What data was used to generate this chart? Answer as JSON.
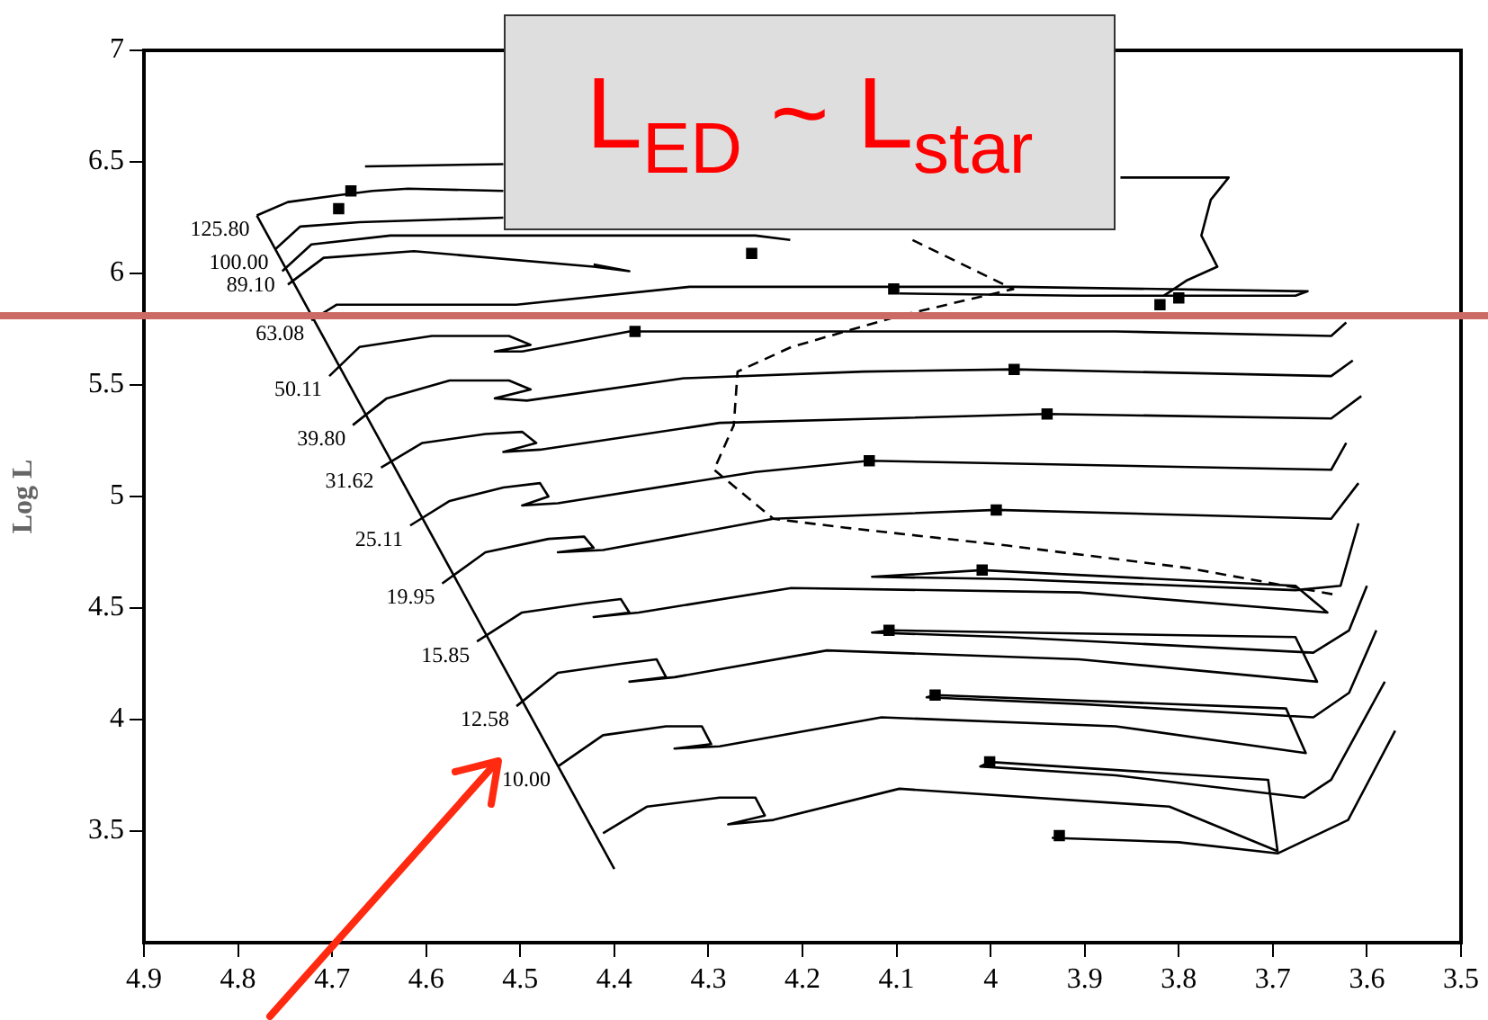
{
  "chart_data": {
    "type": "line",
    "ylabel": "Log L",
    "annotations": [
      "L$_{ED}$ ~ L$_{star}$"
    ],
    "xlim": [
      4.9,
      3.5
    ],
    "xticks": [
      4.9,
      4.8,
      4.7,
      4.6,
      4.5,
      4.4,
      4.3,
      4.2,
      4.1,
      4,
      3.9,
      3.8,
      3.7,
      3.6,
      3.5
    ],
    "ylim": [
      3,
      7
    ],
    "yticks": [
      3.5,
      4,
      4.5,
      5,
      5.5,
      6,
      6.5,
      7
    ],
    "grid": false,
    "legend": false,
    "ref_lines": [
      {
        "axis": "y",
        "value": 5.81,
        "color": "#cc6b66"
      }
    ],
    "series": [
      {
        "color": "#000000",
        "x": [
          4.78,
          4.4
        ],
        "values": [
          6.26,
          3.33
        ]
      },
      {
        "name": "125.80",
        "color": "#000000",
        "x": [
          4.78,
          4.747,
          4.695,
          4.657,
          4.619,
          4.518
        ],
        "values": [
          6.26,
          6.32,
          6.35,
          6.37,
          6.38,
          6.37
        ]
      },
      {
        "color": "#000000",
        "x": [
          4.665,
          4.518
        ],
        "values": [
          6.48,
          6.49
        ]
      },
      {
        "color": "#000000",
        "x": [
          3.862,
          3.747,
          3.766,
          3.776,
          3.759,
          3.791,
          3.816
        ],
        "values": [
          6.43,
          6.43,
          6.33,
          6.17,
          6.03,
          5.97,
          5.9
        ]
      },
      {
        "name": "100.00",
        "color": "#000000",
        "x": [
          4.76,
          4.734,
          4.671,
          4.518
        ],
        "values": [
          6.11,
          6.21,
          6.23,
          6.25
        ]
      },
      {
        "name": "89.10",
        "color": "#000000",
        "x": [
          4.753,
          4.722,
          4.638,
          4.518,
          4.25,
          4.213
        ],
        "values": [
          6.01,
          6.13,
          6.17,
          6.17,
          6.17,
          6.15
        ]
      },
      {
        "color": "#000000",
        "x": [
          4.747,
          4.709,
          4.613,
          4.422,
          4.384,
          4.422
        ],
        "values": [
          5.95,
          6.07,
          6.1,
          6.03,
          6.01,
          6.04
        ]
      },
      {
        "name": "63.08",
        "color": "#000000",
        "x": [
          4.722,
          4.695,
          4.504,
          4.32,
          4.288,
          3.976,
          3.663,
          3.676,
          3.906,
          4.097
        ],
        "values": [
          5.79,
          5.86,
          5.86,
          5.94,
          5.94,
          5.94,
          5.92,
          5.9,
          5.9,
          5.91
        ]
      },
      {
        "name": "50.11",
        "color": "#000000",
        "x": [
          4.703,
          4.671,
          4.594,
          4.512,
          4.489,
          4.527,
          4.498,
          4.384,
          4.097,
          3.867,
          3.638,
          3.622
        ],
        "values": [
          5.54,
          5.67,
          5.72,
          5.72,
          5.68,
          5.65,
          5.65,
          5.74,
          5.74,
          5.74,
          5.72,
          5.78
        ]
      },
      {
        "name": "39.80",
        "color": "#000000",
        "x": [
          4.678,
          4.642,
          4.575,
          4.512,
          4.489,
          4.527,
          4.493,
          4.326,
          4.135,
          3.975,
          3.638,
          3.615
        ],
        "values": [
          5.32,
          5.44,
          5.52,
          5.52,
          5.48,
          5.44,
          5.43,
          5.53,
          5.56,
          5.57,
          5.54,
          5.61
        ]
      },
      {
        "name": "31.62",
        "color": "#000000",
        "x": [
          4.648,
          4.604,
          4.537,
          4.498,
          4.483,
          4.518,
          4.479,
          4.288,
          3.94,
          3.638,
          3.606
        ],
        "values": [
          5.13,
          5.24,
          5.28,
          5.29,
          5.24,
          5.2,
          5.21,
          5.33,
          5.37,
          5.35,
          5.45
        ]
      },
      {
        "name": "25.11",
        "color": "#000000",
        "x": [
          4.617,
          4.575,
          4.518,
          4.479,
          4.47,
          4.498,
          4.46,
          4.25,
          4.129,
          3.638,
          3.622
        ],
        "values": [
          4.87,
          4.98,
          5.04,
          5.06,
          5.0,
          4.96,
          4.97,
          5.11,
          5.16,
          5.12,
          5.24
        ]
      },
      {
        "name": "19.95",
        "color": "#000000",
        "x": [
          4.583,
          4.537,
          4.47,
          4.432,
          4.422,
          4.46,
          4.412,
          4.231,
          3.994,
          3.638,
          3.609
        ],
        "values": [
          4.61,
          4.75,
          4.81,
          4.82,
          4.77,
          4.75,
          4.76,
          4.9,
          4.94,
          4.9,
          5.06
        ]
      },
      {
        "name": "15.85",
        "color": "#000000",
        "x": [
          4.546,
          4.498,
          4.432,
          4.393,
          4.384,
          4.422,
          4.374,
          4.212,
          3.906,
          3.642,
          3.676,
          4.009,
          4.126,
          3.982,
          3.676,
          3.628,
          3.609
        ],
        "values": [
          4.35,
          4.48,
          4.52,
          4.54,
          4.48,
          4.46,
          4.48,
          4.59,
          4.57,
          4.48,
          4.6,
          4.67,
          4.64,
          4.63,
          4.58,
          4.6,
          4.88
        ]
      },
      {
        "name": "12.58",
        "color": "#000000",
        "x": [
          4.504,
          4.46,
          4.393,
          4.355,
          4.345,
          4.384,
          4.336,
          4.174,
          3.906,
          3.653,
          3.676,
          4.108,
          4.126,
          3.982,
          3.657,
          3.619,
          3.6
        ],
        "values": [
          4.06,
          4.21,
          4.25,
          4.27,
          4.19,
          4.17,
          4.19,
          4.31,
          4.27,
          4.17,
          4.37,
          4.4,
          4.39,
          4.37,
          4.3,
          4.4,
          4.6
        ]
      },
      {
        "name": "10.00",
        "color": "#000000",
        "x": [
          4.46,
          4.412,
          4.345,
          4.307,
          4.297,
          4.336,
          4.288,
          4.116,
          3.867,
          3.665,
          3.686,
          4.059,
          4.068,
          3.906,
          3.657,
          3.619,
          3.59
        ],
        "values": [
          3.79,
          3.93,
          3.97,
          3.97,
          3.89,
          3.87,
          3.88,
          4.01,
          3.97,
          3.85,
          4.05,
          4.11,
          4.1,
          4.07,
          4.01,
          4.12,
          4.4
        ]
      },
      {
        "color": "#000000",
        "x": [
          4.412,
          4.365,
          4.288,
          4.25,
          4.24,
          4.279,
          4.231,
          4.097,
          3.81,
          3.695,
          3.705,
          4.001,
          4.011,
          3.867,
          3.667,
          3.638,
          3.581
        ],
        "values": [
          3.49,
          3.61,
          3.65,
          3.65,
          3.57,
          3.53,
          3.55,
          3.69,
          3.61,
          3.41,
          3.73,
          3.81,
          3.79,
          3.75,
          3.65,
          3.73,
          4.17
        ]
      },
      {
        "color": "#000000",
        "x": [
          3.935,
          3.8,
          3.695,
          3.62,
          3.57
        ],
        "values": [
          3.47,
          3.45,
          3.4,
          3.55,
          3.95
        ]
      },
      {
        "color": "#000000",
        "line_style": "dashed",
        "x": [
          4.083,
          3.976,
          4.097,
          4.212,
          4.269,
          4.273,
          4.294,
          4.231,
          4.154,
          3.982,
          3.791,
          3.634
        ],
        "values": [
          6.15,
          5.93,
          5.81,
          5.67,
          5.56,
          5.32,
          5.12,
          4.9,
          4.86,
          4.78,
          4.68,
          4.56
        ]
      },
      {
        "type": "scatter",
        "marker": "square",
        "color": "#000000",
        "x": [
          4.68,
          4.693,
          4.254,
          4.103,
          3.82,
          3.8,
          4.378,
          3.975,
          3.94,
          4.129,
          3.994,
          4.009,
          4.108,
          4.059,
          4.001,
          3.927
        ],
        "values": [
          6.37,
          6.29,
          6.09,
          5.93,
          5.86,
          5.89,
          5.74,
          5.57,
          5.37,
          5.16,
          4.94,
          4.67,
          4.4,
          4.11,
          3.81,
          3.48
        ]
      }
    ]
  }
}
